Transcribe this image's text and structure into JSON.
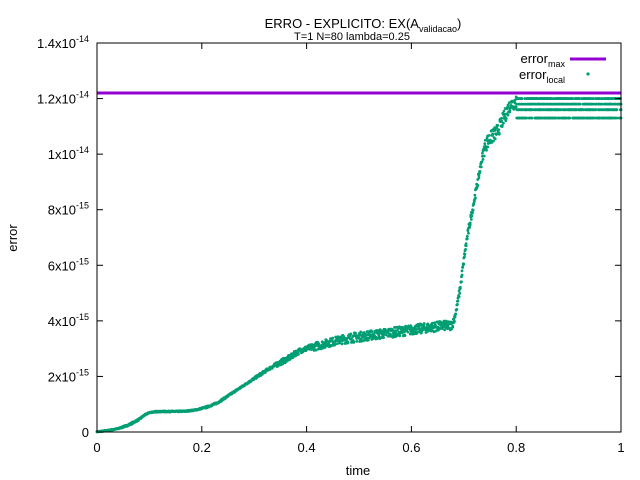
{
  "chart_data": {
    "type": "scatter",
    "title": "ERRO - EXPLICITO: EX(A",
    "title_subscript": "validacao",
    "title_suffix": ")",
    "subtitle": "T=1 N=80 lambda=0.25",
    "xlabel": "time",
    "ylabel": "error",
    "xlim": [
      0,
      1
    ],
    "ylim": [
      0,
      1.4e-14
    ],
    "x_ticks": [
      "0",
      "0.2",
      "0.4",
      "0.6",
      "0.8",
      "1"
    ],
    "x_tick_values": [
      0,
      0.2,
      0.4,
      0.6,
      0.8,
      1
    ],
    "y_ticks": [
      {
        "value": 0,
        "mantissa": "0",
        "exp": ""
      },
      {
        "value": 2e-15,
        "mantissa": "2x10",
        "exp": "-15"
      },
      {
        "value": 4e-15,
        "mantissa": "4x10",
        "exp": "-15"
      },
      {
        "value": 6e-15,
        "mantissa": "6x10",
        "exp": "-15"
      },
      {
        "value": 8e-15,
        "mantissa": "8x10",
        "exp": "-15"
      },
      {
        "value": 1e-14,
        "mantissa": "1x10",
        "exp": "-14"
      },
      {
        "value": 1.2e-14,
        "mantissa": "1.2x10",
        "exp": "-14"
      },
      {
        "value": 1.4e-14,
        "mantissa": "1.4x10",
        "exp": "-14"
      }
    ],
    "grid": false,
    "legend_position": "top-right",
    "series": [
      {
        "name": "error",
        "name_subscript": "max",
        "kind": "line",
        "color": "#9400d3",
        "x": [
          0,
          1
        ],
        "y": [
          1.22e-14,
          1.22e-14
        ]
      },
      {
        "name": "error",
        "name_subscript": "local",
        "kind": "points",
        "color": "#009e73",
        "x": [
          0,
          0.02,
          0.04,
          0.06,
          0.08,
          0.09,
          0.1,
          0.11,
          0.13,
          0.15,
          0.17,
          0.19,
          0.21,
          0.23,
          0.25,
          0.27,
          0.29,
          0.31,
          0.33,
          0.35,
          0.37,
          0.38,
          0.39,
          0.4,
          0.42,
          0.44,
          0.46,
          0.48,
          0.5,
          0.52,
          0.54,
          0.56,
          0.58,
          0.6,
          0.62,
          0.64,
          0.66,
          0.675,
          0.68,
          0.685,
          0.69,
          0.695,
          0.7,
          0.705,
          0.71,
          0.715,
          0.72,
          0.725,
          0.73,
          0.735,
          0.74,
          0.745,
          0.75,
          0.755,
          0.76,
          0.765,
          0.77,
          0.775,
          0.78,
          0.785,
          0.79,
          0.8,
          0.82,
          0.84,
          0.86,
          0.88,
          0.9,
          0.92,
          0.94,
          0.96,
          0.98,
          1.0
        ],
        "y": [
          0,
          5e-17,
          1.2e-16,
          2.5e-16,
          4.5e-16,
          6e-16,
          7e-16,
          7.3e-16,
          7.4e-16,
          7.4e-16,
          7.5e-16,
          8e-16,
          9e-16,
          1.05e-15,
          1.3e-15,
          1.55e-15,
          1.8e-15,
          2.05e-15,
          2.3e-15,
          2.5e-15,
          2.7e-15,
          2.85e-15,
          2.95e-15,
          3e-15,
          3.1e-15,
          3.2e-15,
          3.3e-15,
          3.35e-15,
          3.4e-15,
          3.45e-15,
          3.5e-15,
          3.55e-15,
          3.6e-15,
          3.65e-15,
          3.7e-15,
          3.75e-15,
          3.8e-15,
          3.8e-15,
          3.95e-15,
          4.3e-15,
          4.8e-15,
          5.4e-15,
          6.1e-15,
          6.8e-15,
          7.3e-15,
          7.8e-15,
          8.3e-15,
          8.8e-15,
          9.3e-15,
          9.8e-15,
          1.02e-14,
          1.04e-14,
          1.05e-14,
          1.06e-14,
          1.07e-14,
          1.08e-14,
          1.1e-14,
          1.12e-14,
          1.14e-14,
          1.16e-14,
          1.18e-14,
          1.2e-14,
          1.2e-14,
          1.18e-14,
          1.16e-14,
          1.18e-14,
          1.16e-14,
          1.18e-14,
          1.16e-14,
          1.18e-14,
          1.16e-14,
          1.16e-14
        ],
        "band_low": [
          0,
          3e-17,
          1e-16,
          2.2e-16,
          4.2e-16,
          5.8e-16,
          6.8e-16,
          7.1e-16,
          7.2e-16,
          7.2e-16,
          7.3e-16,
          7.8e-16,
          8.7e-16,
          1.02e-15,
          1.27e-15,
          1.52e-15,
          1.77e-15,
          2e-15,
          2.25e-15,
          2.4e-15,
          2.6e-15,
          2.75e-15,
          2.85e-15,
          2.9e-15,
          2.95e-15,
          3.05e-15,
          3.15e-15,
          3.2e-15,
          3.25e-15,
          3.3e-15,
          3.35e-15,
          3.4e-15,
          3.45e-15,
          3.5e-15,
          3.55e-15,
          3.6e-15,
          3.65e-15,
          3.65e-15,
          3.8e-15,
          4.2e-15,
          4.7e-15,
          5.3e-15,
          6e-15,
          6.7e-15,
          7.2e-15,
          7.7e-15,
          8.2e-15,
          8.7e-15,
          9.2e-15,
          9.7e-15,
          1e-14,
          1.02e-14,
          1.03e-14,
          1.04e-14,
          1.05e-14,
          1.06e-14,
          1.08e-14,
          1.1e-14,
          1.12e-14,
          1.14e-14,
          1.16e-14,
          1.16e-14,
          1.13e-14,
          1.13e-14,
          1.13e-14,
          1.13e-14,
          1.13e-14,
          1.13e-14,
          1.13e-14,
          1.13e-14,
          1.13e-14,
          1.13e-14
        ],
        "band_high": [
          2e-17,
          7e-17,
          1.4e-16,
          2.8e-16,
          4.8e-16,
          6.2e-16,
          7.2e-16,
          7.5e-16,
          7.6e-16,
          7.6e-16,
          7.7e-16,
          8.2e-16,
          9.3e-16,
          1.08e-15,
          1.33e-15,
          1.58e-15,
          1.83e-15,
          2.1e-15,
          2.35e-15,
          2.6e-15,
          2.8e-15,
          2.95e-15,
          3.05e-15,
          3.1e-15,
          3.25e-15,
          3.35e-15,
          3.45e-15,
          3.55e-15,
          3.6e-15,
          3.65e-15,
          3.7e-15,
          3.75e-15,
          3.8e-15,
          3.85e-15,
          3.9e-15,
          3.95e-15,
          4e-15,
          4e-15,
          4.1e-15,
          4.45e-15,
          4.95e-15,
          5.6e-15,
          6.3e-15,
          7e-15,
          7.5e-15,
          8e-15,
          8.5e-15,
          9e-15,
          9.5e-15,
          1e-14,
          1.05e-14,
          1.07e-14,
          1.08e-14,
          1.09e-14,
          1.1e-14,
          1.11e-14,
          1.13e-14,
          1.15e-14,
          1.17e-14,
          1.19e-14,
          1.2e-14,
          1.22e-14,
          1.22e-14,
          1.22e-14,
          1.22e-14,
          1.22e-14,
          1.22e-14,
          1.22e-14,
          1.22e-14,
          1.22e-14,
          1.22e-14,
          1.22e-14
        ]
      }
    ]
  }
}
